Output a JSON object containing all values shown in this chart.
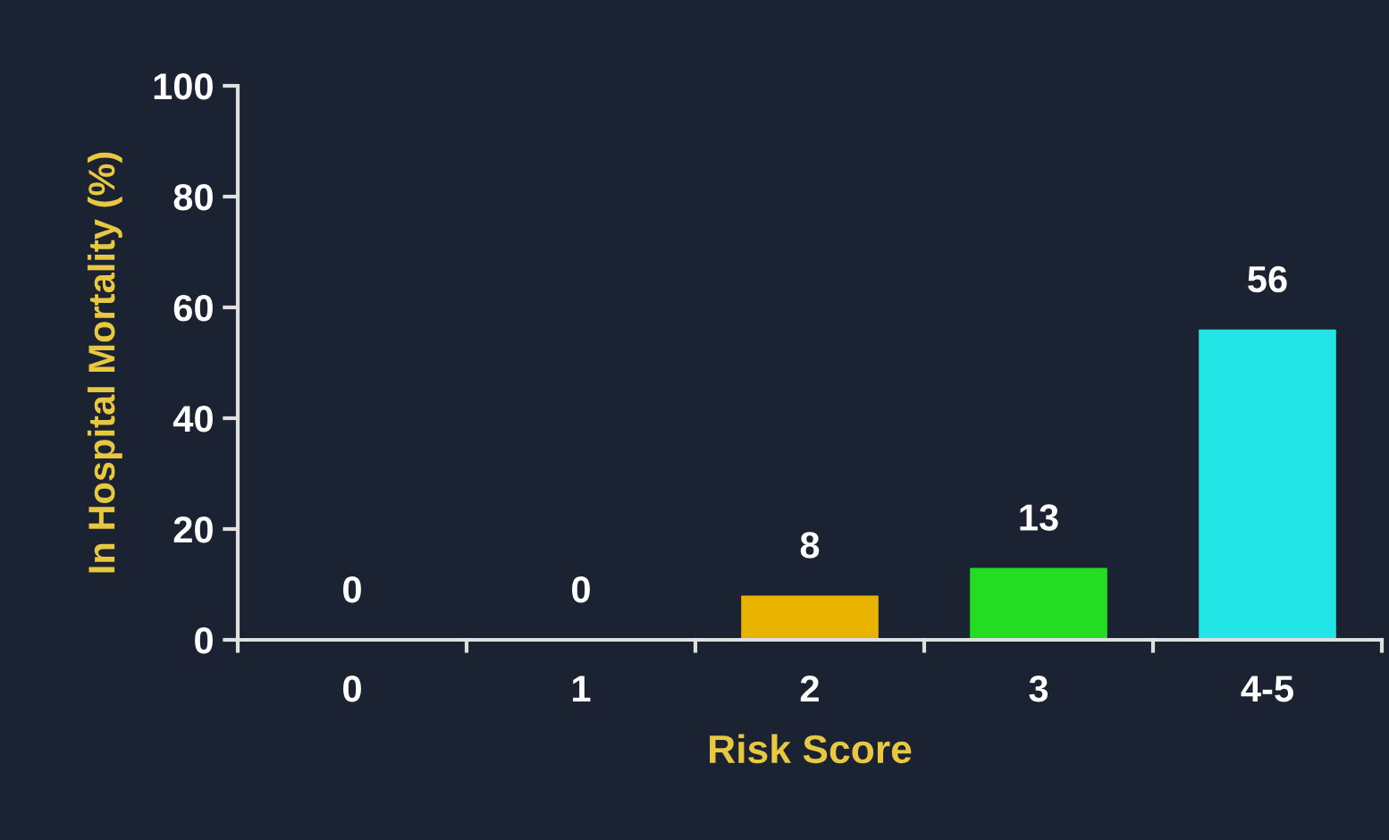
{
  "chart_data": {
    "type": "bar",
    "xlabel": "Risk Score",
    "ylabel": "In Hospital Mortality (%)",
    "categories": [
      "0",
      "1",
      "2",
      "3",
      "4-5"
    ],
    "values": [
      0,
      0,
      8,
      13,
      56
    ],
    "colors": [
      "#e8b400",
      "#e8b400",
      "#e8b400",
      "#22dd22",
      "#22e6e6"
    ],
    "ylim": [
      0,
      100
    ],
    "yticks": [
      0,
      20,
      40,
      60,
      80,
      100
    ],
    "grid": false,
    "legend": false,
    "data_labels": true
  }
}
